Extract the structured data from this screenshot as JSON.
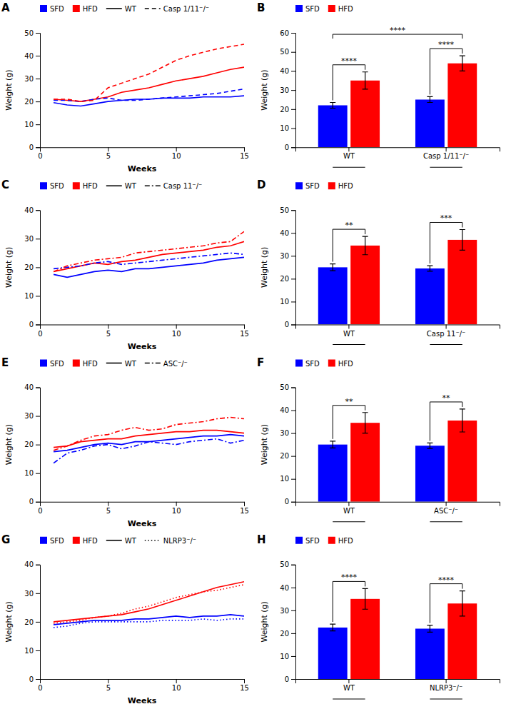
{
  "chart_data": [
    {
      "type": "line",
      "title": "A",
      "xlabel": "Weeks",
      "ylabel": "Weight (g)",
      "x": [
        1,
        2,
        3,
        4,
        5,
        6,
        7,
        8,
        9,
        10,
        11,
        12,
        13,
        14,
        15
      ],
      "xlim": [
        0,
        15
      ],
      "xticks": [
        0,
        5,
        10,
        15
      ],
      "ylim": [
        0,
        50
      ],
      "yticks": [
        0,
        10,
        20,
        30,
        40,
        50
      ],
      "series": [
        {
          "color": "#0000FF",
          "line_style": "solid",
          "values": [
            19.5,
            18.5,
            18.0,
            19.0,
            20.0,
            20.5,
            21.0,
            21.0,
            21.5,
            21.5,
            21.5,
            22.0,
            22.0,
            22.0,
            22.5
          ]
        },
        {
          "color": "#FF0000",
          "line_style": "solid",
          "values": [
            21.0,
            20.5,
            20.0,
            21.0,
            22.0,
            24.0,
            25.0,
            26.0,
            27.5,
            29.0,
            30.0,
            31.0,
            32.5,
            34.0,
            35.0
          ]
        },
        {
          "color": "#0000FF",
          "line_style": "dashed",
          "values": [
            20.5,
            20.5,
            20.0,
            21.0,
            21.5,
            20.5,
            20.5,
            21.0,
            21.5,
            22.0,
            22.5,
            23.0,
            23.5,
            24.5,
            25.5
          ]
        },
        {
          "color": "#FF0000",
          "line_style": "dashed",
          "values": [
            21.0,
            21.0,
            20.0,
            20.5,
            26.0,
            28.0,
            30.0,
            32.0,
            35.0,
            38.0,
            40.0,
            41.5,
            43.0,
            44.0,
            45.0
          ]
        }
      ],
      "legend": "top",
      "legend_items": [
        {
          "label": "SFD",
          "color": "#0000FF"
        },
        {
          "label": "HFD",
          "color": "#FF0000"
        },
        {
          "label": "WT",
          "color": "#000000",
          "line_style": "solid"
        },
        {
          "label": "Casp 1/11⁻/⁻",
          "color": "#000000",
          "line_style": "dashed"
        }
      ]
    },
    {
      "type": "bar",
      "title": "B",
      "ylabel": "Weight (g)",
      "categories": [
        "WT",
        "Casp 1/11⁻/⁻"
      ],
      "ylim": [
        0,
        60
      ],
      "yticks": [
        0,
        10,
        20,
        30,
        40,
        50,
        60
      ],
      "series": [
        {
          "name": "SFD",
          "color": "#0000FF",
          "values": [
            22.0,
            25.0
          ],
          "errors": [
            1.5,
            1.5
          ]
        },
        {
          "name": "HFD",
          "color": "#FF0000",
          "values": [
            35.0,
            44.0
          ],
          "errors": [
            4.5,
            4.0
          ]
        }
      ],
      "legend": "top",
      "annotations": [
        {
          "text": "****",
          "categories": [
            "WT"
          ]
        },
        {
          "text": "****",
          "categories": [
            "Casp 1/11⁻/⁻"
          ]
        },
        {
          "text": "****",
          "categories": [
            "WT",
            "Casp 1/11⁻/⁻"
          ]
        }
      ]
    },
    {
      "type": "line",
      "title": "C",
      "xlabel": "Weeks",
      "ylabel": "Weight (g)",
      "x": [
        1,
        2,
        3,
        4,
        5,
        6,
        7,
        8,
        9,
        10,
        11,
        12,
        13,
        14,
        15
      ],
      "xlim": [
        0,
        15
      ],
      "xticks": [
        0,
        5,
        10,
        15
      ],
      "ylim": [
        0,
        40
      ],
      "yticks": [
        0,
        10,
        20,
        30,
        40
      ],
      "series": [
        {
          "color": "#0000FF",
          "line_style": "solid",
          "values": [
            17.5,
            16.5,
            17.5,
            18.5,
            19.0,
            18.5,
            19.5,
            19.5,
            20.0,
            20.5,
            21.0,
            21.5,
            22.5,
            23.0,
            23.5
          ]
        },
        {
          "color": "#FF0000",
          "line_style": "solid",
          "values": [
            18.5,
            19.5,
            20.5,
            21.5,
            21.0,
            22.0,
            22.5,
            23.5,
            24.5,
            25.0,
            25.5,
            26.0,
            27.0,
            27.5,
            29.0
          ]
        },
        {
          "color": "#0000FF",
          "line_style": "dashdot",
          "values": [
            19.5,
            20.0,
            20.5,
            21.5,
            22.0,
            21.0,
            21.5,
            22.0,
            22.5,
            23.0,
            23.5,
            24.0,
            24.5,
            25.0,
            24.5
          ]
        },
        {
          "color": "#FF0000",
          "line_style": "dashdot",
          "values": [
            18.5,
            20.5,
            21.5,
            22.5,
            23.0,
            23.5,
            25.0,
            25.5,
            26.0,
            26.5,
            27.0,
            27.5,
            28.5,
            29.0,
            32.5
          ]
        }
      ],
      "legend": "top",
      "legend_items": [
        {
          "label": "SFD",
          "color": "#0000FF"
        },
        {
          "label": "HFD",
          "color": "#FF0000"
        },
        {
          "label": "WT",
          "color": "#000000",
          "line_style": "solid"
        },
        {
          "label": "Casp 11⁻/⁻",
          "color": "#000000",
          "line_style": "dashdot"
        }
      ]
    },
    {
      "type": "bar",
      "title": "D",
      "ylabel": "Weight (g)",
      "categories": [
        "WT",
        "Casp 11⁻/⁻"
      ],
      "ylim": [
        0,
        50
      ],
      "yticks": [
        0,
        10,
        20,
        30,
        40,
        50
      ],
      "series": [
        {
          "name": "SFD",
          "color": "#0000FF",
          "values": [
            25.0,
            24.5
          ],
          "errors": [
            1.5,
            1.2
          ]
        },
        {
          "name": "HFD",
          "color": "#FF0000",
          "values": [
            34.5,
            37.0
          ],
          "errors": [
            4.0,
            4.5
          ]
        }
      ],
      "legend": "top",
      "annotations": [
        {
          "text": "**",
          "categories": [
            "WT"
          ]
        },
        {
          "text": "***",
          "categories": [
            "Casp 11⁻/⁻"
          ]
        }
      ]
    },
    {
      "type": "line",
      "title": "E",
      "xlabel": "Weeks",
      "ylabel": "Weight (g)",
      "x": [
        1,
        2,
        3,
        4,
        5,
        6,
        7,
        8,
        9,
        10,
        11,
        12,
        13,
        14,
        15
      ],
      "xlim": [
        0,
        15
      ],
      "xticks": [
        0,
        5,
        10,
        15
      ],
      "ylim": [
        0,
        40
      ],
      "yticks": [
        0,
        10,
        20,
        30,
        40
      ],
      "series": [
        {
          "color": "#0000FF",
          "line_style": "solid",
          "values": [
            17.5,
            18.0,
            19.0,
            20.0,
            20.5,
            20.0,
            21.0,
            21.0,
            21.5,
            22.0,
            22.5,
            23.0,
            23.0,
            23.5,
            23.0
          ]
        },
        {
          "color": "#FF0000",
          "line_style": "solid",
          "values": [
            19.0,
            19.5,
            21.0,
            21.5,
            22.0,
            22.0,
            23.0,
            23.5,
            24.0,
            24.5,
            24.5,
            25.0,
            25.0,
            24.5,
            24.0
          ]
        },
        {
          "color": "#0000FF",
          "line_style": "dashdot",
          "values": [
            13.5,
            17.0,
            18.0,
            19.5,
            20.0,
            18.5,
            19.5,
            21.0,
            20.5,
            20.0,
            21.0,
            21.5,
            22.0,
            20.5,
            21.5
          ]
        },
        {
          "color": "#FF0000",
          "line_style": "dashdot",
          "values": [
            18.0,
            19.5,
            21.5,
            23.0,
            23.5,
            25.0,
            26.0,
            25.0,
            25.5,
            27.0,
            27.5,
            28.0,
            29.0,
            29.5,
            29.0
          ]
        }
      ],
      "legend": "top",
      "legend_items": [
        {
          "label": "SFD",
          "color": "#0000FF"
        },
        {
          "label": "HFD",
          "color": "#FF0000"
        },
        {
          "label": "WT",
          "color": "#000000",
          "line_style": "solid"
        },
        {
          "label": "ASC⁻/⁻",
          "color": "#000000",
          "line_style": "dashdot"
        }
      ]
    },
    {
      "type": "bar",
      "title": "F",
      "ylabel": "Weight (g)",
      "categories": [
        "WT",
        "ASC⁻/⁻"
      ],
      "ylim": [
        0,
        50
      ],
      "yticks": [
        0,
        10,
        20,
        30,
        40,
        50
      ],
      "series": [
        {
          "name": "SFD",
          "color": "#0000FF",
          "values": [
            25.0,
            24.5
          ],
          "errors": [
            1.5,
            1.2
          ]
        },
        {
          "name": "HFD",
          "color": "#FF0000",
          "values": [
            34.5,
            35.5
          ],
          "errors": [
            4.5,
            5.0
          ]
        }
      ],
      "legend": "top",
      "annotations": [
        {
          "text": "**",
          "categories": [
            "WT"
          ]
        },
        {
          "text": "**",
          "categories": [
            "ASC⁻/⁻"
          ]
        }
      ]
    },
    {
      "type": "line",
      "title": "G",
      "xlabel": "Weeks",
      "ylabel": "Weight (g)",
      "x": [
        1,
        2,
        3,
        4,
        5,
        6,
        7,
        8,
        9,
        10,
        11,
        12,
        13,
        14,
        15
      ],
      "xlim": [
        0,
        15
      ],
      "xticks": [
        0,
        5,
        10,
        15
      ],
      "ylim": [
        0,
        40
      ],
      "yticks": [
        0,
        10,
        20,
        30,
        40
      ],
      "series": [
        {
          "color": "#0000FF",
          "line_style": "solid",
          "values": [
            19.0,
            19.5,
            20.0,
            20.5,
            20.5,
            20.5,
            21.0,
            21.0,
            21.5,
            22.0,
            21.5,
            22.0,
            22.0,
            22.5,
            22.0
          ]
        },
        {
          "color": "#FF0000",
          "line_style": "solid",
          "values": [
            20.0,
            20.5,
            21.0,
            21.5,
            22.0,
            22.5,
            23.5,
            24.5,
            26.0,
            27.5,
            29.0,
            30.5,
            32.0,
            33.0,
            34.0
          ]
        },
        {
          "color": "#0000FF",
          "line_style": "dotted",
          "values": [
            18.0,
            18.5,
            19.5,
            20.0,
            20.0,
            20.0,
            20.0,
            20.0,
            20.5,
            20.5,
            20.5,
            21.0,
            20.5,
            21.0,
            21.0
          ]
        },
        {
          "color": "#FF0000",
          "line_style": "dotted",
          "values": [
            19.5,
            20.0,
            20.5,
            21.5,
            22.0,
            23.0,
            24.5,
            25.5,
            27.0,
            28.5,
            29.5,
            30.5,
            31.0,
            32.0,
            33.0
          ]
        }
      ],
      "legend": "top",
      "legend_items": [
        {
          "label": "SFD",
          "color": "#0000FF"
        },
        {
          "label": "HFD",
          "color": "#FF0000"
        },
        {
          "label": "WT",
          "color": "#000000",
          "line_style": "solid"
        },
        {
          "label": "NLRP3⁻/⁻",
          "color": "#000000",
          "line_style": "dotted"
        }
      ]
    },
    {
      "type": "bar",
      "title": "H",
      "ylabel": "Weight (g)",
      "categories": [
        "WT",
        "NLRP3⁻/⁻"
      ],
      "ylim": [
        0,
        50
      ],
      "yticks": [
        0,
        10,
        20,
        30,
        40,
        50
      ],
      "series": [
        {
          "name": "SFD",
          "color": "#0000FF",
          "values": [
            22.5,
            22.0
          ],
          "errors": [
            1.5,
            1.5
          ]
        },
        {
          "name": "HFD",
          "color": "#FF0000",
          "values": [
            35.0,
            33.0
          ],
          "errors": [
            4.5,
            5.5
          ]
        }
      ],
      "legend": "top",
      "annotations": [
        {
          "text": "****",
          "categories": [
            "WT"
          ]
        },
        {
          "text": "****",
          "categories": [
            "NLRP3⁻/⁻"
          ]
        }
      ]
    }
  ]
}
